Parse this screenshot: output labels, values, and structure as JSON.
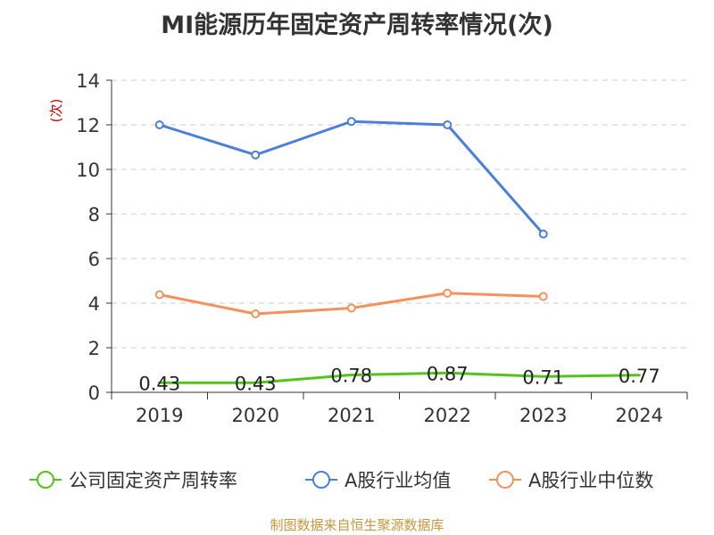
{
  "title": "MI能源历年固定资产周转率情况(次)",
  "source": "制图数据来自恒生聚源数据库",
  "colors": {
    "company": "#52c41a",
    "industry_avg": "#4a7fdb",
    "industry_median": "#f5915a",
    "unit_label": "#cc0000"
  },
  "chart_data": {
    "type": "line",
    "title": "MI能源历年固定资产周转率情况(次)",
    "ylabel": "(次)",
    "xlabel": "",
    "categories": [
      "2019",
      "2020",
      "2021",
      "2022",
      "2023",
      "2024"
    ],
    "ylim": [
      0,
      14
    ],
    "yticks": [
      0,
      2,
      4,
      6,
      8,
      10,
      12,
      14
    ],
    "grid": true,
    "legend_position": "bottom",
    "series": [
      {
        "name": "公司固定资产周转率",
        "values": [
          0.43,
          0.43,
          0.78,
          0.87,
          0.71,
          0.77
        ],
        "labels": [
          "0.43",
          "0.43",
          "0.78",
          "0.87",
          "0.71",
          "0.77"
        ],
        "color": "#52c41a"
      },
      {
        "name": "A股行业均值",
        "values": [
          12.0,
          10.65,
          12.15,
          12.0,
          7.1,
          null
        ],
        "color": "#4a7fdb"
      },
      {
        "name": "A股行业中位数",
        "values": [
          4.38,
          3.52,
          3.78,
          4.45,
          4.3,
          null
        ],
        "color": "#f5915a"
      }
    ]
  }
}
